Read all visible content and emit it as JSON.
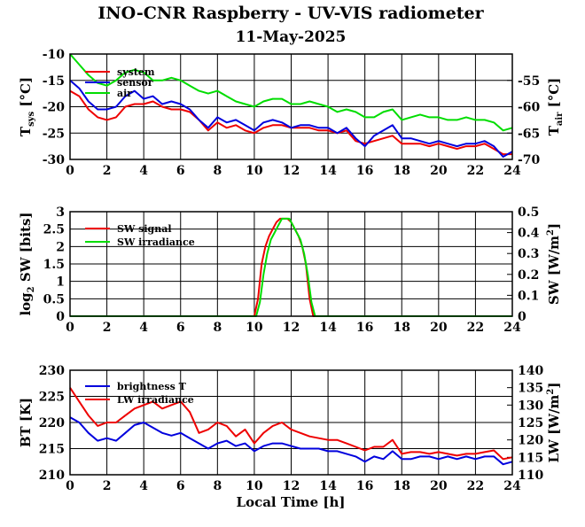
{
  "header": {
    "title": "INO-CNR Raspberry - UV-VIS radiometer",
    "date": "11-May-2025"
  },
  "xlabel": "Local Time [h]",
  "colors": {
    "red": "#ee0000",
    "blue": "#0000dd",
    "green": "#00dd00",
    "grid": "#000000"
  },
  "chart_data": [
    {
      "type": "line",
      "id": "temperature",
      "xlim": [
        0,
        24
      ],
      "x_ticks": [
        "0",
        "2",
        "4",
        "6",
        "8",
        "10",
        "12",
        "14",
        "16",
        "18",
        "20",
        "22",
        "24"
      ],
      "ylim": [
        -30,
        -10
      ],
      "y_ticks": [
        "-30",
        "-25",
        "-20",
        "-15",
        "-10"
      ],
      "y2lim": [
        -70,
        -50
      ],
      "y2_ticks": [
        "-70",
        "-65",
        "-60",
        "-55"
      ],
      "ylabel": "T",
      "ylabel_sub": "sys",
      "ylabel_unit": " [°C]",
      "y2label": "T",
      "y2label_sub": "air",
      "y2label_unit": " [°C]",
      "series": [
        {
          "name": "system",
          "color": "#ee0000",
          "axis": "left",
          "x": [
            0,
            0.5,
            1,
            1.5,
            2,
            2.5,
            3,
            3.5,
            4,
            4.5,
            5,
            5.5,
            6,
            6.5,
            7,
            7.5,
            8,
            8.5,
            9,
            9.5,
            10,
            10.5,
            11,
            11.5,
            12,
            12.5,
            13,
            13.5,
            14,
            14.5,
            15,
            15.5,
            16,
            16.5,
            17,
            17.5,
            18,
            18.5,
            19,
            19.5,
            20,
            20.5,
            21,
            21.5,
            22,
            22.5,
            23,
            23.5,
            24
          ],
          "y": [
            -17,
            -18,
            -20.5,
            -22,
            -22.5,
            -22,
            -20,
            -19.5,
            -19.5,
            -19,
            -20,
            -20.5,
            -20.5,
            -21,
            -22.5,
            -24.5,
            -23,
            -24,
            -23.5,
            -24.5,
            -25,
            -24,
            -23.5,
            -23.5,
            -24,
            -24,
            -24,
            -24.5,
            -24.5,
            -25,
            -24.5,
            -26.5,
            -27,
            -26.5,
            -26,
            -25.5,
            -27,
            -27,
            -27,
            -27.5,
            -27,
            -27.5,
            -28,
            -27.5,
            -27.5,
            -27,
            -28,
            -29,
            -29
          ]
        },
        {
          "name": "sensor",
          "color": "#0000dd",
          "axis": "left",
          "x": [
            0,
            0.5,
            1,
            1.5,
            2,
            2.5,
            3,
            3.5,
            4,
            4.5,
            5,
            5.5,
            6,
            6.5,
            7,
            7.5,
            8,
            8.5,
            9,
            9.5,
            10,
            10.5,
            11,
            11.5,
            12,
            12.5,
            13,
            13.5,
            14,
            14.5,
            15,
            15.5,
            16,
            16.5,
            17,
            17.5,
            18,
            18.5,
            19,
            19.5,
            20,
            20.5,
            21,
            21.5,
            22,
            22.5,
            23,
            23.5,
            24
          ],
          "y": [
            -15,
            -16.5,
            -19,
            -20.5,
            -20.5,
            -20,
            -18,
            -17,
            -18.5,
            -18,
            -19.5,
            -19,
            -19.5,
            -20.5,
            -22.5,
            -24,
            -22,
            -23,
            -22.5,
            -23.5,
            -24.5,
            -23,
            -22.5,
            -23,
            -24,
            -23.5,
            -23.5,
            -24,
            -24,
            -25,
            -24,
            -26,
            -27.5,
            -25.5,
            -24.5,
            -23.5,
            -26,
            -26,
            -26.5,
            -27,
            -26.5,
            -27,
            -27.5,
            -27,
            -27,
            -26.5,
            -27.5,
            -29.5,
            -28.5
          ]
        },
        {
          "name": "air",
          "color": "#00dd00",
          "axis": "right",
          "x": [
            0,
            0.5,
            1,
            1.5,
            2,
            2.5,
            3,
            3.5,
            4,
            4.5,
            5,
            5.5,
            6,
            6.5,
            7,
            7.5,
            8,
            8.5,
            9,
            9.5,
            10,
            10.5,
            11,
            11.5,
            12,
            12.5,
            13,
            13.5,
            14,
            14.5,
            15,
            15.5,
            16,
            16.5,
            17,
            17.5,
            18,
            18.5,
            19,
            19.5,
            20,
            20.5,
            21,
            21.5,
            22,
            22.5,
            23,
            23.5,
            24
          ],
          "y": [
            -50,
            -52,
            -54,
            -55.5,
            -56,
            -55,
            -53.5,
            -53,
            -53.5,
            -55,
            -55,
            -54.5,
            -55,
            -56,
            -57,
            -57.5,
            -57,
            -58,
            -59,
            -59.5,
            -60,
            -59,
            -58.5,
            -58.5,
            -59.5,
            -59.5,
            -59,
            -59.5,
            -60,
            -61,
            -60.5,
            -61,
            -62,
            -62,
            -61,
            -60.5,
            -62.5,
            -62,
            -61.5,
            -62,
            -62,
            -62.5,
            -62.5,
            -62,
            -62.5,
            -62.5,
            -63,
            -64.5,
            -64
          ]
        }
      ]
    },
    {
      "type": "line",
      "id": "shortwave",
      "xlim": [
        0,
        24
      ],
      "x_ticks": [
        "0",
        "2",
        "4",
        "6",
        "8",
        "10",
        "12",
        "14",
        "16",
        "18",
        "20",
        "22",
        "24"
      ],
      "ylim": [
        0,
        3
      ],
      "y_ticks": [
        "0",
        "0.5",
        "1",
        "1.5",
        "2",
        "2.5",
        "3"
      ],
      "y2lim": [
        0,
        0.5
      ],
      "y2_ticks": [
        "0",
        "0.1",
        "0.2",
        "0.3",
        "0.4",
        "0.5"
      ],
      "ylabel": "log",
      "ylabel_sub": "2",
      "ylabel_unit": " SW [bits]",
      "y2label": "SW [W/m",
      "y2label_sup": "2",
      "y2label_unit": "]",
      "series": [
        {
          "name": "SW signal",
          "color": "#ee0000",
          "axis": "left",
          "x": [
            0,
            10,
            10.2,
            10.4,
            10.6,
            10.8,
            11,
            11.2,
            11.4,
            11.6,
            11.8,
            12,
            12.2,
            12.4,
            12.6,
            12.8,
            13,
            13.2,
            13.4,
            24
          ],
          "y": [
            0,
            0,
            0.5,
            1.5,
            2,
            2.3,
            2.5,
            2.7,
            2.8,
            2.8,
            2.8,
            2.7,
            2.5,
            2.3,
            2,
            1.5,
            0.5,
            0,
            0,
            0
          ]
        },
        {
          "name": "SW irradiance",
          "color": "#00dd00",
          "axis": "left",
          "x": [
            0,
            10.1,
            10.3,
            10.5,
            10.7,
            10.9,
            11.1,
            11.3,
            11.5,
            11.7,
            11.9,
            12.1,
            12.3,
            12.5,
            12.7,
            12.9,
            13.1,
            13.3,
            13.5,
            24
          ],
          "y": [
            0,
            0,
            0.4,
            1.2,
            1.8,
            2.2,
            2.4,
            2.6,
            2.8,
            2.8,
            2.8,
            2.6,
            2.4,
            2.2,
            1.8,
            1.2,
            0.4,
            0,
            0,
            0
          ]
        }
      ]
    },
    {
      "type": "line",
      "id": "longwave",
      "xlim": [
        0,
        24
      ],
      "x_ticks": [
        "0",
        "2",
        "4",
        "6",
        "8",
        "10",
        "12",
        "14",
        "16",
        "18",
        "20",
        "22",
        "24"
      ],
      "ylim": [
        210,
        230
      ],
      "y_ticks": [
        "210",
        "215",
        "220",
        "225",
        "230"
      ],
      "y2lim": [
        110,
        140
      ],
      "y2_ticks": [
        "110",
        "115",
        "120",
        "125",
        "130",
        "135",
        "140"
      ],
      "ylabel": "BT [K]",
      "y2label": "LW [W/m",
      "y2label_sup": "2",
      "y2label_unit": "]",
      "series": [
        {
          "name": "brightness T",
          "color": "#0000dd",
          "axis": "left",
          "x": [
            0,
            0.5,
            1,
            1.5,
            2,
            2.5,
            3,
            3.5,
            4,
            4.5,
            5,
            5.5,
            6,
            6.5,
            7,
            7.5,
            8,
            8.5,
            9,
            9.5,
            10,
            10.5,
            11,
            11.5,
            12,
            12.5,
            13,
            13.5,
            14,
            14.5,
            15,
            15.5,
            16,
            16.5,
            17,
            17.5,
            18,
            18.5,
            19,
            19.5,
            20,
            20.5,
            21,
            21.5,
            22,
            22.5,
            23,
            23.5,
            24
          ],
          "y": [
            221,
            220,
            218,
            216.5,
            217,
            216.5,
            218,
            219.5,
            220,
            219,
            218,
            217.5,
            218,
            217,
            216,
            215,
            216,
            216.5,
            215.5,
            216,
            214.5,
            215.5,
            216,
            216,
            215.5,
            215,
            215,
            215,
            214.5,
            214.5,
            214,
            213.5,
            212.5,
            213.5,
            213,
            214.5,
            213,
            213,
            213.5,
            213.5,
            213,
            213.5,
            213,
            213.5,
            213,
            213.5,
            213.5,
            212,
            212.5
          ]
        },
        {
          "name": "LW irradiance",
          "color": "#ee0000",
          "axis": "right",
          "x": [
            0,
            0.5,
            1,
            1.5,
            2,
            2.5,
            3,
            3.5,
            4,
            4.5,
            5,
            5.5,
            6,
            6.5,
            7,
            7.5,
            8,
            8.5,
            9,
            9.5,
            10,
            10.5,
            11,
            11.5,
            12,
            12.5,
            13,
            13.5,
            14,
            14.5,
            15,
            15.5,
            16,
            16.5,
            17,
            17.5,
            18,
            18.5,
            19,
            19.5,
            20,
            20.5,
            21,
            21.5,
            22,
            22.5,
            23,
            23.5,
            24
          ],
          "y": [
            135,
            131,
            127,
            124,
            125,
            125,
            127,
            129,
            130,
            131,
            129,
            130,
            131,
            128,
            122,
            123,
            125,
            124,
            121,
            123,
            119,
            122,
            124,
            125,
            123,
            122,
            121,
            120.5,
            120,
            120,
            119,
            118,
            117,
            118,
            118,
            120,
            116,
            116.5,
            116.5,
            116,
            116.5,
            116,
            115.5,
            116,
            116,
            116.5,
            117,
            114.5,
            115
          ]
        }
      ]
    }
  ]
}
